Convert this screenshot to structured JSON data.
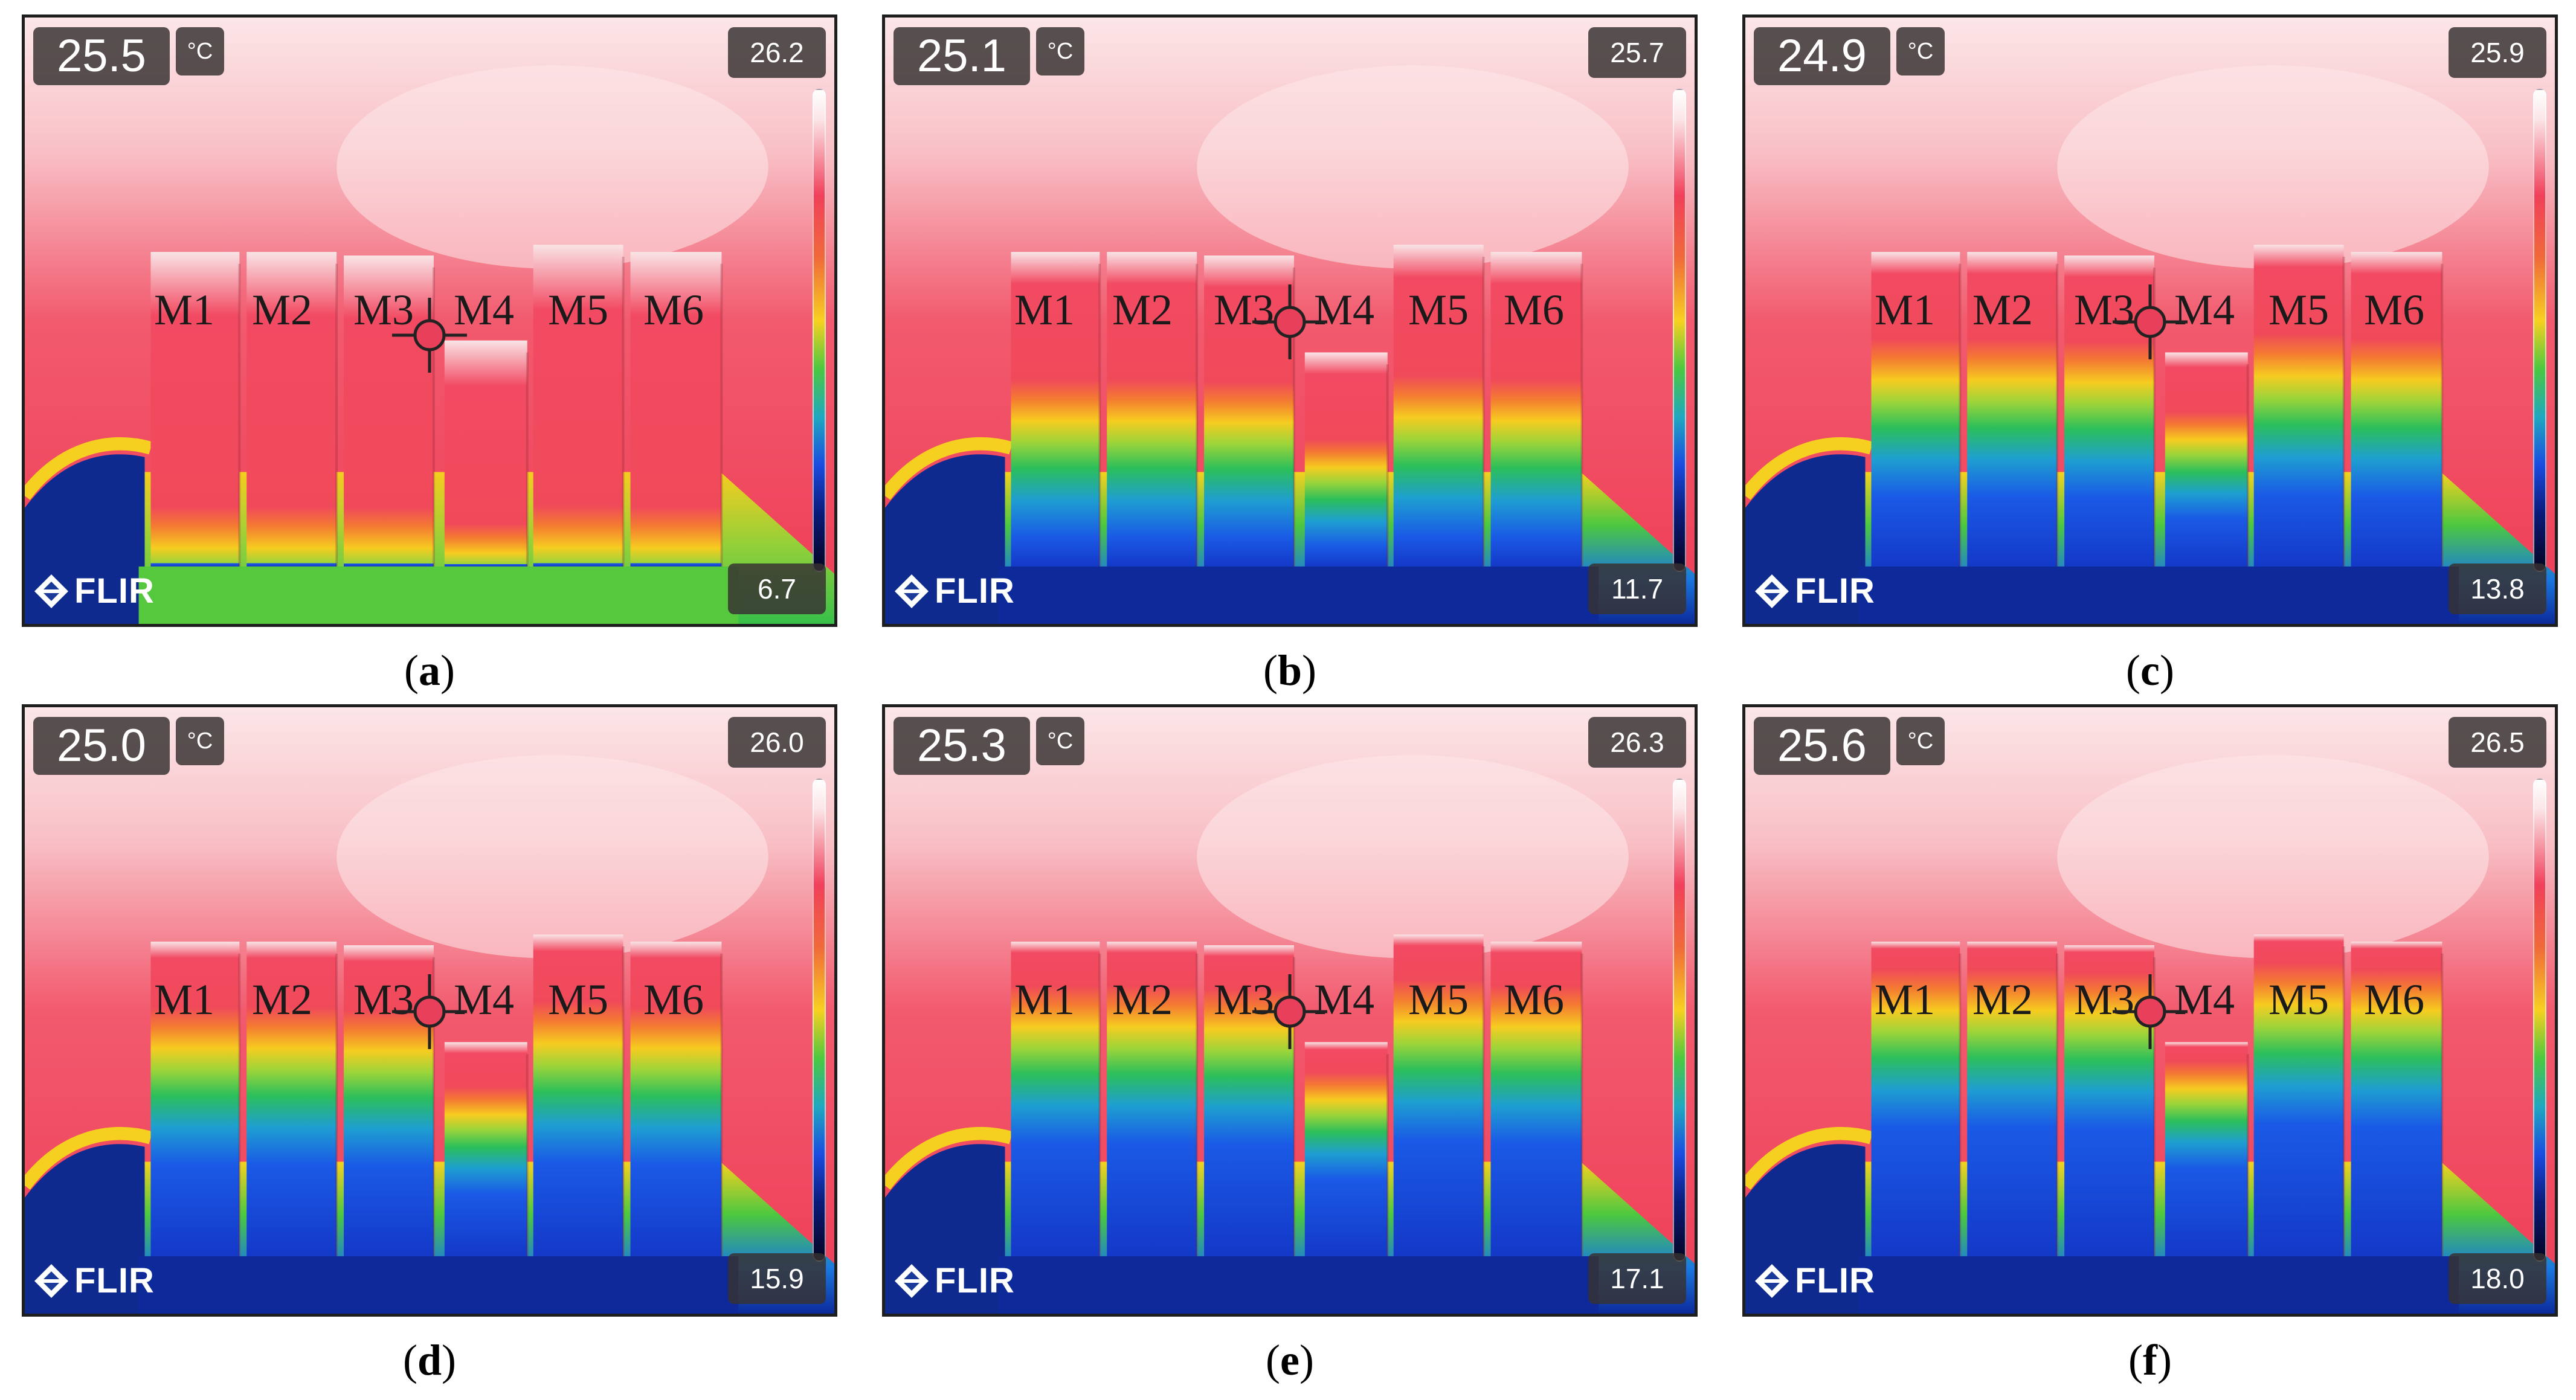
{
  "logo_text": "FLIR",
  "unit": "°C",
  "modules": [
    "M1",
    "M2",
    "M3",
    "M4",
    "M5",
    "M6"
  ],
  "panels": [
    {
      "caption_letter": "a",
      "spot_temp": "25.5",
      "scale_max": "26.2",
      "scale_min": "6.7",
      "cooling_fraction": 0.08
    },
    {
      "caption_letter": "b",
      "spot_temp": "25.1",
      "scale_max": "25.7",
      "scale_min": "11.7",
      "cooling_fraction": 0.55
    },
    {
      "caption_letter": "c",
      "spot_temp": "24.9",
      "scale_max": "25.9",
      "scale_min": "13.8",
      "cooling_fraction": 0.7
    },
    {
      "caption_letter": "d",
      "spot_temp": "25.0",
      "scale_max": "26.0",
      "scale_min": "15.9",
      "cooling_fraction": 0.78
    },
    {
      "caption_letter": "e",
      "spot_temp": "25.3",
      "scale_max": "26.3",
      "scale_min": "17.1",
      "cooling_fraction": 0.86
    },
    {
      "caption_letter": "f",
      "spot_temp": "25.6",
      "scale_max": "26.5",
      "scale_min": "18.0",
      "cooling_fraction": 0.92
    }
  ],
  "colors": {
    "wall_hot": "#f0405a",
    "wall_light": "#fde2e4",
    "overlay_bg": "#373232",
    "label_text": "#1a1a1a",
    "crosshair_fill": "#e8405a"
  }
}
